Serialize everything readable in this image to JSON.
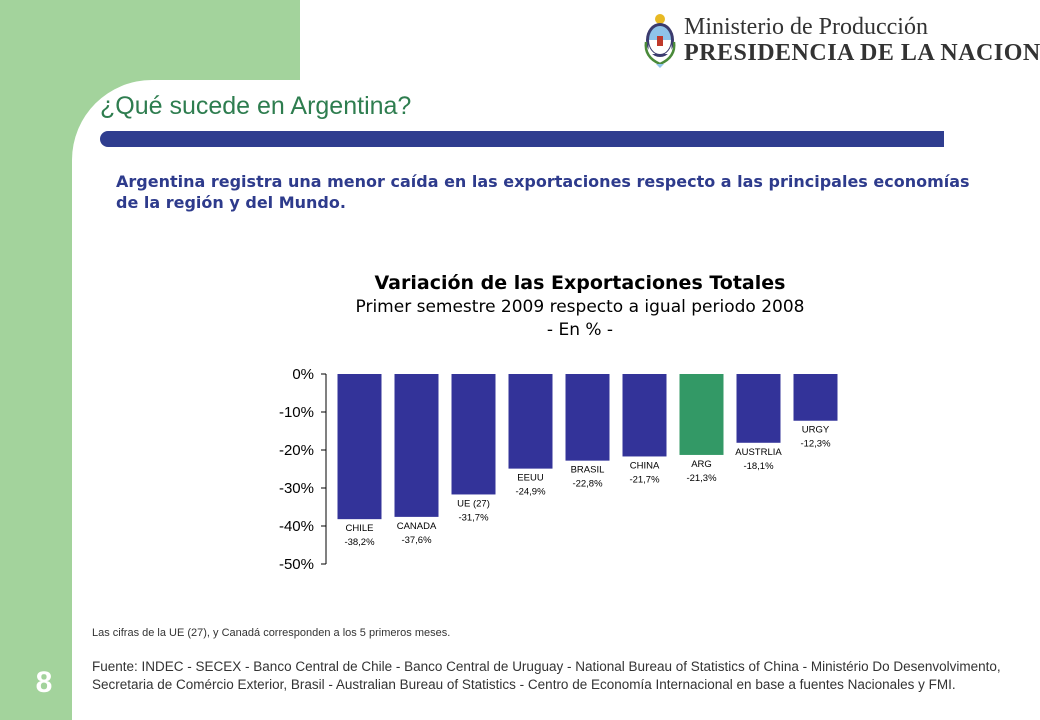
{
  "slide": {
    "title": "¿Qué sucede en Argentina?",
    "subtitle": "Argentina registra una menor caída en las exportaciones respecto a las principales economías de la región y del Mundo.",
    "page_number": "8",
    "note": "Las cifras de la UE (27), y Canadá corresponden a los 5 primeros meses.",
    "source": "Fuente: INDEC - SECEX - Banco Central de Chile - Banco Central de Uruguay - National Bureau of Statistics of China - Ministério Do Desenvolvimento, Secretaria de Comércio Exterior, Brasil - Australian Bureau of Statistics - Centro de Economía Internacional en base a fuentes Nacionales y FMI."
  },
  "header": {
    "logo_line1": "Ministerio de Producción",
    "logo_line2": "PRESIDENCIA DE LA NACION",
    "emblem_icon": "argentina-coat-of-arms-icon"
  },
  "colors": {
    "green_band": "#a3d39c",
    "title_green": "#2e7d4f",
    "navy": "#2f3d8f",
    "bar_default": "#333399",
    "bar_highlight": "#339966"
  },
  "chart_data": {
    "type": "bar",
    "title": "Variación de las Exportaciones Totales",
    "subtitle": "Primer semestre 2009 respecto a igual periodo 2008",
    "unit_label": "- En % -",
    "categories": [
      "CHILE",
      "CANADA",
      "UE (27)",
      "EEUU",
      "BRASIL",
      "CHINA",
      "ARG",
      "AUSTRLIA",
      "URGY"
    ],
    "values": [
      -38.2,
      -37.6,
      -31.7,
      -24.9,
      -22.8,
      -21.7,
      -21.3,
      -18.1,
      -12.3
    ],
    "value_labels": [
      "-38,2%",
      "-37,6%",
      "-31,7%",
      "-24,9%",
      "-22,8%",
      "-21,7%",
      "-21,3%",
      "-18,1%",
      "-12,3%"
    ],
    "highlight": "ARG",
    "ylim": [
      -50,
      0
    ],
    "yticks": [
      0,
      -10,
      -20,
      -30,
      -40,
      -50
    ],
    "ytick_labels": [
      "0%",
      "-10%",
      "-20%",
      "-30%",
      "-40%",
      "-50%"
    ],
    "grid": false,
    "legend": "none"
  }
}
